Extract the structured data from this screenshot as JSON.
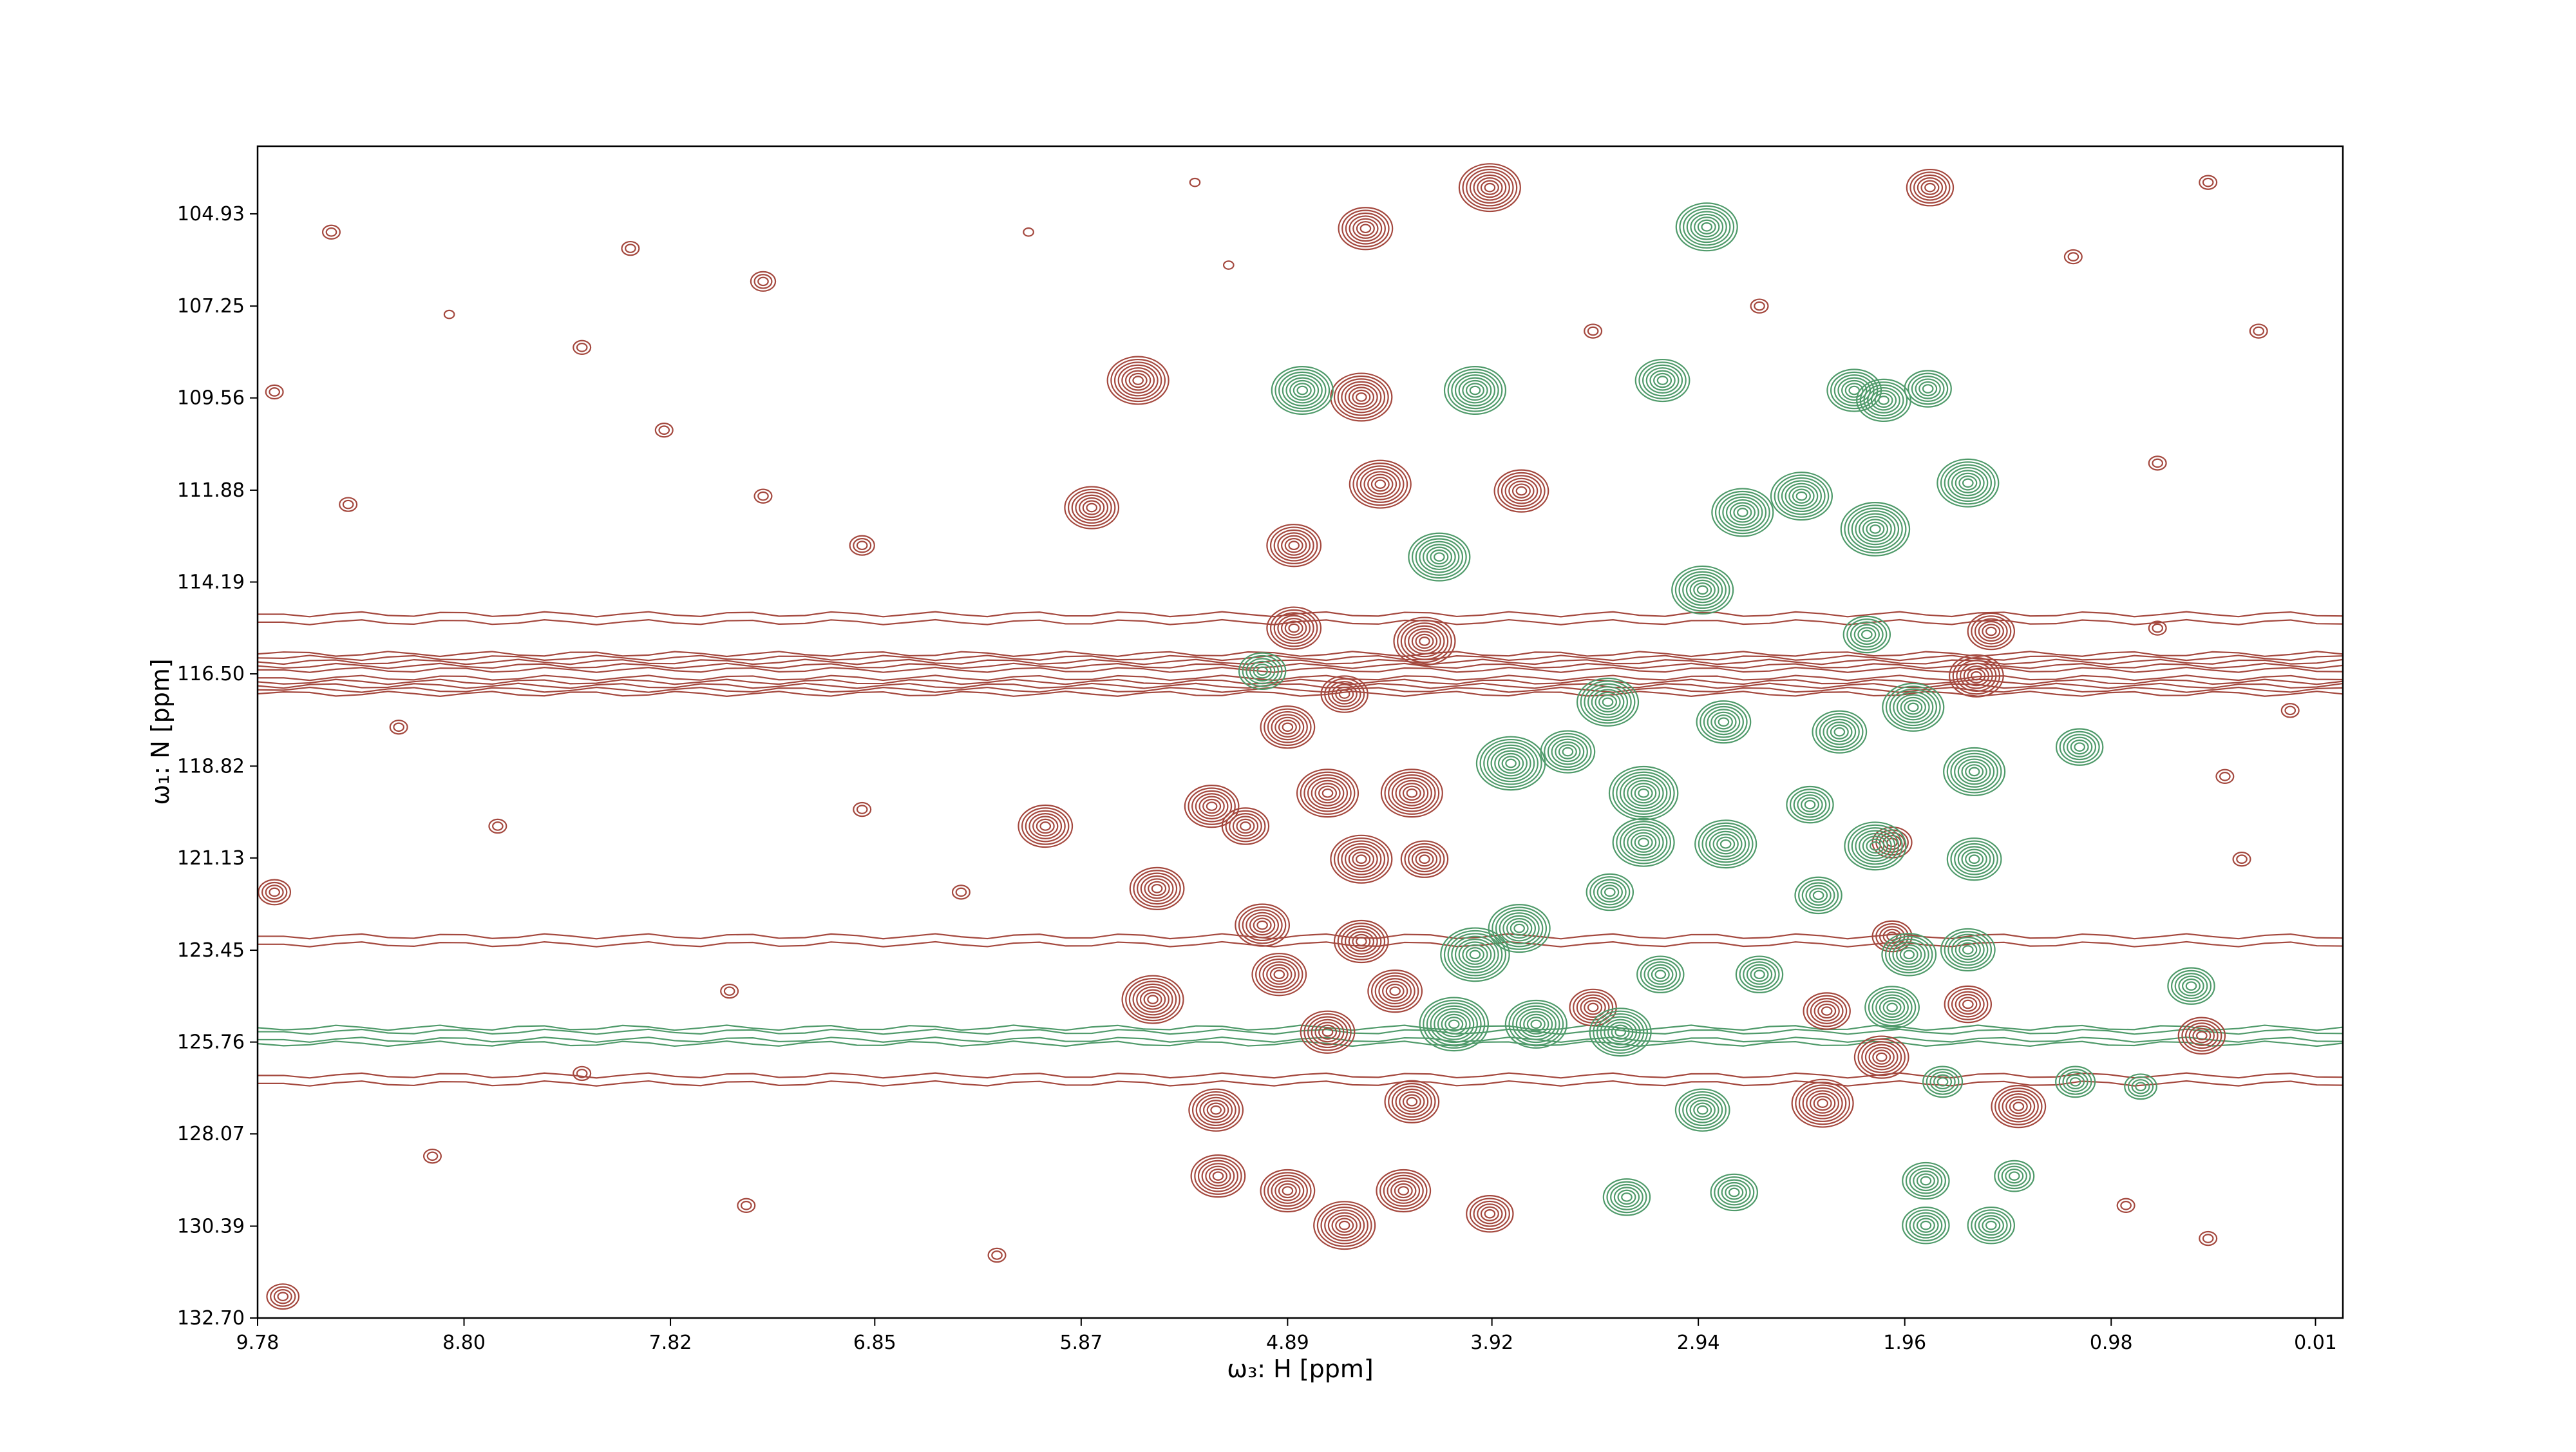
{
  "chart_data": {
    "type": "contour",
    "xlabel": "ω₃: H [ppm]",
    "ylabel": "ω₁: N [ppm]",
    "xlim": [
      9.78,
      -0.12
    ],
    "ylim": [
      132.7,
      103.23
    ],
    "xticks": [
      9.78,
      {
        "value": 8.8,
        "label": "8.80"
      },
      7.82,
      6.85,
      5.87,
      4.89,
      3.92,
      2.94,
      1.96,
      0.98,
      0.01
    ],
    "yticks": [
      104.93,
      107.25,
      109.56,
      111.88,
      114.19,
      {
        "value": 116.5,
        "label": "116.50"
      },
      118.82,
      121.13,
      123.45,
      125.76,
      128.07,
      130.39,
      {
        "value": 132.7,
        "label": "132.70"
      }
    ],
    "ridges": [
      {
        "color": "#a4483e",
        "y": 116.5,
        "levels": 5
      },
      {
        "color": "#a4483e",
        "y": 115.1,
        "levels": 1
      },
      {
        "color": "#a4483e",
        "y": 123.2,
        "levels": 1
      },
      {
        "color": "#a4483e",
        "y": 126.7,
        "levels": 1
      },
      {
        "color": "#4f9a6a",
        "y": 125.6,
        "levels": 2
      }
    ],
    "peaks": [
      {
        "color": "#a4483e",
        "x": [
          5.6,
          4.52,
          3.93,
          4.54,
          5.82,
          3.78,
          4.45,
          6.04,
          5.51,
          5.25,
          5.53,
          5.23,
          5.22,
          4.89,
          4.62,
          4.34,
          3.93,
          4.3,
          4.7,
          1.84,
          1.62,
          1.55,
          2.07,
          2.35,
          1.42,
          1.66,
          2.33,
          0.55,
          3.44,
          4.24,
          4.86,
          4.86,
          4.89,
          4.7,
          4.3,
          4.54,
          5.01,
          4.54,
          4.93,
          4.38,
          4.24,
          5.09,
          4.62,
          2.02,
          2.02,
          9.7,
          9.66,
          9.43,
          8.01,
          7.38,
          8.87,
          8.24,
          7.85,
          7.38,
          6.91,
          9.35,
          9.11,
          8.64,
          6.91,
          6.44,
          7.54,
          8.24,
          8.95,
          7.46,
          6.27,
          0.76,
          1.16,
          0.28,
          0.52,
          0.13,
          0.36,
          0.91,
          0.52,
          5.33,
          6.12,
          5.17,
          2.65,
          3.44,
          0.76,
          0.44,
          9.7
        ],
        "y": [
          109.12,
          105.3,
          104.27,
          109.54,
          112.32,
          111.9,
          111.73,
          120.33,
          121.9,
          119.83,
          124.69,
          127.47,
          129.13,
          129.5,
          130.37,
          129.5,
          130.08,
          127.26,
          125.51,
          104.27,
          116.55,
          115.43,
          126.14,
          127.3,
          127.38,
          124.81,
          124.98,
          125.6,
          124.89,
          115.68,
          113.27,
          115.35,
          117.84,
          119.5,
          119.5,
          121.16,
          122.82,
          123.23,
          124.06,
          124.48,
          121.16,
          120.33,
          117.01,
          120.74,
          123.1,
          121.99,
          132.16,
          105.39,
          105.8,
          106.63,
          107.46,
          108.29,
          110.37,
          112.03,
          113.27,
          112.24,
          117.84,
          120.33,
          119.91,
          121.99,
          124.48,
          126.55,
          128.63,
          129.87,
          131.12,
          111.2,
          106.01,
          107.88,
          104.14,
          117.42,
          121.16,
          129.87,
          130.7,
          104.14,
          105.39,
          106.22,
          107.25,
          107.88,
          115.35,
          119.08,
          109.41
        ],
        "levels": [
          8,
          7,
          8,
          8,
          7,
          7,
          8,
          7,
          7,
          7,
          8,
          7,
          7,
          7,
          8,
          7,
          6,
          7,
          7,
          6,
          7,
          6,
          7,
          8,
          7,
          6,
          6,
          6,
          6,
          8,
          7,
          7,
          7,
          8,
          8,
          8,
          7,
          7,
          7,
          7,
          6,
          6,
          6,
          5,
          5,
          4,
          4,
          2,
          2,
          3,
          1,
          2,
          2,
          2,
          3,
          2,
          2,
          2,
          2,
          2,
          2,
          2,
          2,
          2,
          2,
          2,
          2,
          2,
          2,
          2,
          2,
          2,
          2,
          1,
          1,
          1,
          2,
          2,
          2,
          2,
          2
        ]
      },
      {
        "color": "#4f9a6a",
        "x": [
          2.9,
          4.82,
          4.0,
          3.11,
          2.2,
          1.85,
          2.06,
          4.17,
          2.73,
          2.45,
          2.1,
          1.66,
          2.92,
          2.14,
          3.37,
          2.82,
          2.27,
          1.92,
          1.13,
          3.83,
          3.56,
          3.2,
          3.2,
          2.81,
          2.41,
          1.63,
          2.1,
          1.63,
          3.79,
          4.0,
          3.36,
          2.37,
          1.94,
          1.66,
          3.12,
          2.65,
          4.1,
          3.71,
          3.31,
          2.02,
          0.6,
          2.92,
          3.28,
          2.77,
          1.86,
          1.86,
          1.55,
          1.44,
          1.15,
          0.84,
          1.78,
          5.01
        ],
        "y": [
          105.26,
          109.37,
          109.37,
          109.12,
          109.37,
          109.33,
          109.62,
          113.56,
          112.44,
          112.03,
          112.86,
          111.7,
          114.39,
          115.51,
          117.21,
          117.71,
          117.96,
          117.34,
          118.34,
          118.75,
          118.46,
          119.5,
          120.74,
          120.78,
          119.79,
          118.96,
          120.83,
          121.16,
          122.9,
          123.56,
          121.99,
          122.07,
          123.56,
          123.44,
          124.06,
          124.06,
          125.31,
          125.31,
          125.51,
          124.89,
          124.35,
          127.47,
          129.66,
          129.54,
          129.25,
          130.37,
          130.37,
          129.13,
          126.76,
          126.88,
          126.76,
          116.43
        ],
        "levels": [
          8,
          8,
          8,
          7,
          7,
          6,
          7,
          8,
          8,
          8,
          9,
          8,
          8,
          6,
          8,
          7,
          7,
          8,
          6,
          9,
          7,
          9,
          8,
          8,
          6,
          8,
          8,
          7,
          8,
          9,
          6,
          6,
          7,
          7,
          6,
          6,
          9,
          8,
          8,
          7,
          6,
          7,
          6,
          6,
          6,
          6,
          6,
          5,
          5,
          4,
          5,
          6
        ]
      }
    ]
  }
}
